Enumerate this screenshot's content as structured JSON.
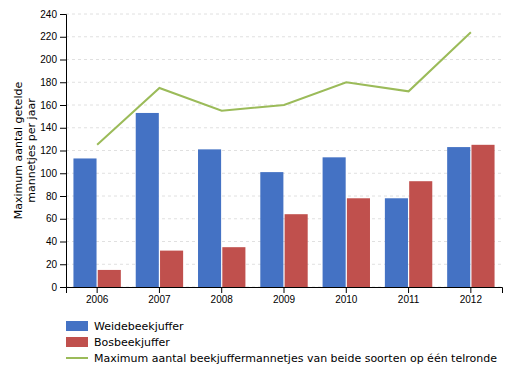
{
  "chart_data": {
    "type": "bar",
    "y_label": "Maximum aantal getelde\nmannetjes per jaar",
    "categories": [
      "2006",
      "2007",
      "2008",
      "2009",
      "2010",
      "2011",
      "2012"
    ],
    "series": [
      {
        "name": "Weidebeekjuffer",
        "color": "#4472C4",
        "type": "bar",
        "values": [
          113,
          153,
          121,
          101,
          114,
          78,
          123
        ]
      },
      {
        "name": "Bosbeekjuffer",
        "color": "#C0504D",
        "type": "bar",
        "values": [
          15,
          32,
          35,
          64,
          78,
          93,
          125
        ]
      },
      {
        "name": "Maximum aantal beekjuffermannetjes van beide soorten op één telronde",
        "color": "#9BBB59",
        "type": "line",
        "values": [
          125,
          175,
          155,
          160,
          180,
          172,
          224
        ]
      }
    ],
    "ylim": [
      0,
      240
    ],
    "yticks": [
      0,
      20,
      40,
      60,
      80,
      100,
      120,
      140,
      160,
      180,
      200,
      220,
      240
    ],
    "grid": true,
    "legend": "bottom"
  }
}
